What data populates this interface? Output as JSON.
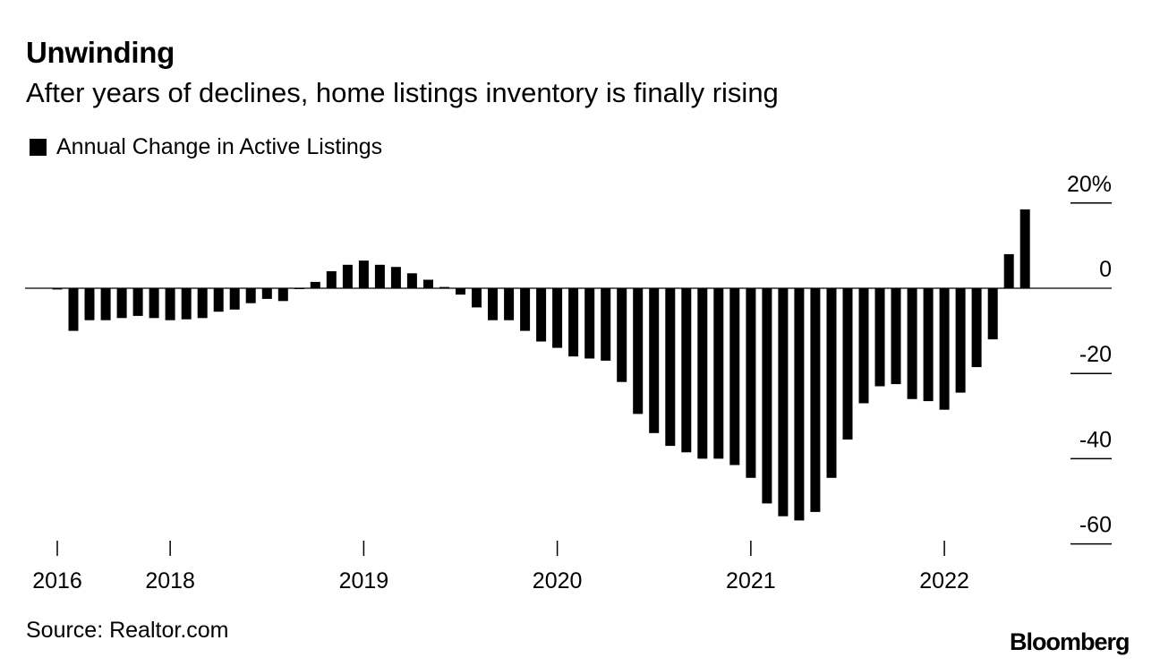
{
  "title": "Unwinding",
  "subtitle": "After years of declines, home listings inventory is finally rising",
  "legend_label": "Annual Change in Active Listings",
  "source": "Source: Realtor.com",
  "brand": "Bloomberg",
  "chart_data": {
    "type": "bar",
    "legend": "top-left",
    "grid": false,
    "ylim": [
      -60,
      20
    ],
    "y_ticks": [
      {
        "value": 20,
        "label": "20%"
      },
      {
        "value": 0,
        "label": "0"
      },
      {
        "value": -20,
        "label": "-20"
      },
      {
        "value": -40,
        "label": "-40"
      },
      {
        "value": -60,
        "label": "-60"
      }
    ],
    "x_ticks": [
      {
        "index": 0,
        "label": "2016"
      },
      {
        "index": 7,
        "label": "2018"
      },
      {
        "index": 19,
        "label": "2019"
      },
      {
        "index": 31,
        "label": "2020"
      },
      {
        "index": 43,
        "label": "2021"
      },
      {
        "index": 55,
        "label": "2022"
      }
    ],
    "series": [
      {
        "name": "Annual Change in Active Listings",
        "color": "#000000",
        "values": [
          -0.3,
          -10,
          -7.5,
          -7.5,
          -7,
          -6.5,
          -7,
          -7.5,
          -7.3,
          -7,
          -5.5,
          -5,
          -3.5,
          -2.5,
          -3,
          0,
          1.5,
          4,
          5.5,
          6.5,
          5.5,
          5,
          3.5,
          2,
          0.3,
          -1.5,
          -4.5,
          -7.5,
          -7.5,
          -10,
          -12.5,
          -14,
          -16,
          -16.5,
          -17,
          -22,
          -29.5,
          -34,
          -37,
          -38.5,
          -40,
          -40,
          -41.5,
          -44.5,
          -50.5,
          -53.5,
          -54.5,
          -52.5,
          -44.5,
          -35.5,
          -27,
          -23,
          -22.5,
          -26,
          -26.5,
          -28.5,
          -24.5,
          -18.5,
          -12,
          8,
          18.5
        ]
      }
    ]
  }
}
